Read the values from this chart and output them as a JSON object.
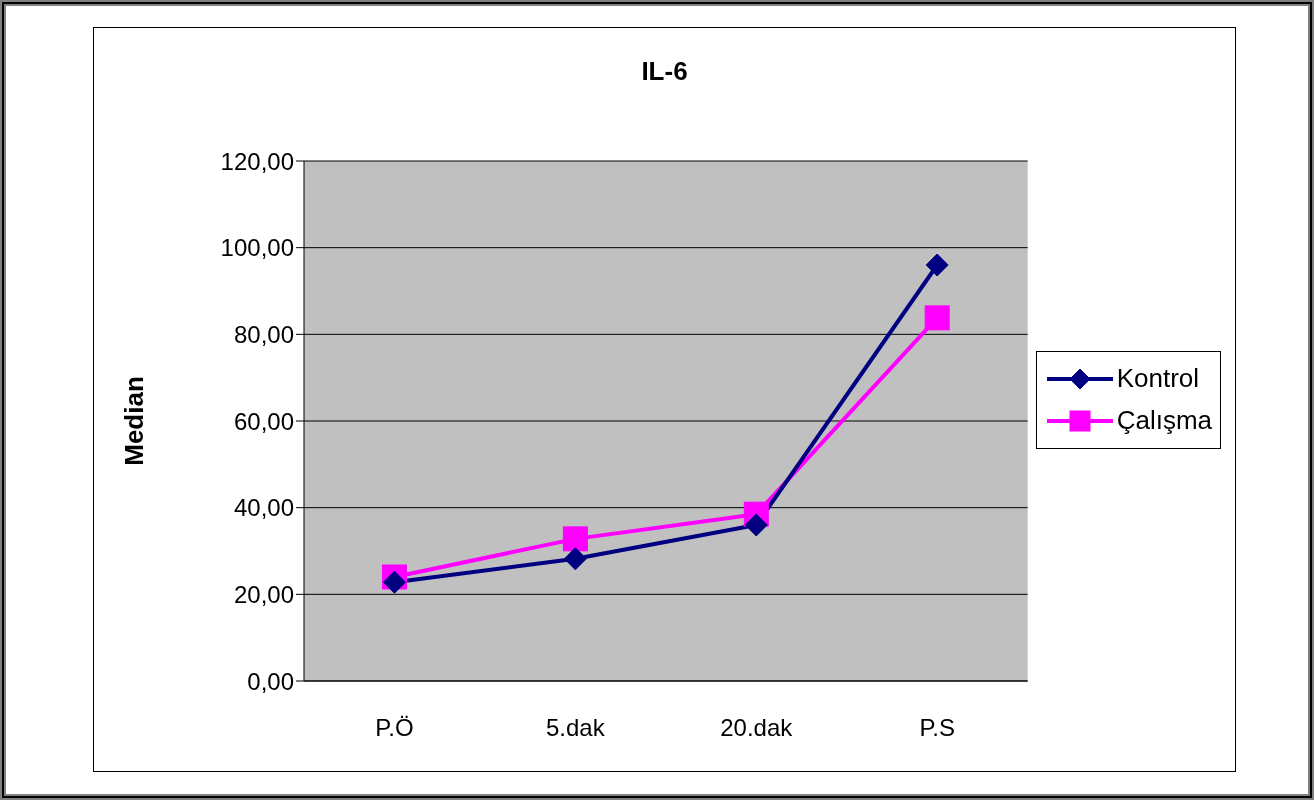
{
  "chart_data": {
    "type": "line",
    "title": "IL-6",
    "ylabel": "Median",
    "categories": [
      "P.Ö",
      "5.dak",
      "20.dak",
      "P.S"
    ],
    "series": [
      {
        "name": "Kontrol",
        "color": "#000080",
        "marker": "diamond",
        "values": [
          22.8,
          28.2,
          36.0,
          96.0
        ]
      },
      {
        "name": "Çalışma",
        "color": "#ff00ff",
        "marker": "square",
        "values": [
          24.0,
          32.8,
          38.5,
          83.8
        ]
      }
    ],
    "ylim": [
      0,
      120
    ],
    "yticks": [
      {
        "value": 0,
        "label": "0,00"
      },
      {
        "value": 20,
        "label": "20,00"
      },
      {
        "value": 40,
        "label": "40,00"
      },
      {
        "value": 60,
        "label": "60,00"
      },
      {
        "value": 80,
        "label": "80,00"
      },
      {
        "value": 100,
        "label": "100,00"
      },
      {
        "value": 120,
        "label": "120,00"
      }
    ],
    "grid": "y",
    "legend": "right",
    "line_style": "solid"
  }
}
